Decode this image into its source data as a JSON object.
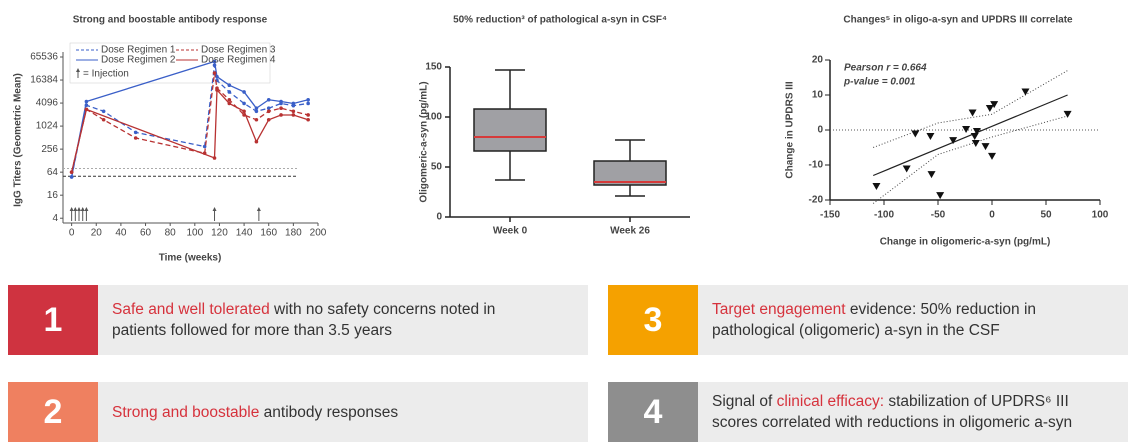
{
  "chart_data": [
    {
      "type": "line",
      "title": "Strong and boostable antibody response",
      "ylabel": "IgG Titers (Geometric Mean)",
      "xlabel": "Time (weeks)",
      "log_y": true,
      "xlim": [
        -7,
        200
      ],
      "ylim": [
        3,
        65536
      ],
      "xticks": [
        0,
        20,
        40,
        60,
        80,
        100,
        120,
        140,
        160,
        180,
        200
      ],
      "yticks": [
        4,
        16,
        64,
        256,
        1024,
        4096,
        16384,
        65536
      ],
      "injection_note": "= Injection",
      "injection_weeks": [
        0,
        3,
        6,
        9,
        12,
        116,
        152
      ],
      "reference_lines": [
        {
          "value": 80,
          "color": "#aaaaaa",
          "dash": "2,2"
        },
        {
          "value": 50,
          "color": "#333333",
          "dash": "3,2"
        }
      ],
      "series": [
        {
          "name": "Dose Regimen 1",
          "color": "#3a5fc8",
          "dashed": true,
          "x": [
            0,
            12,
            26,
            52,
            108,
            116,
            118,
            128,
            140,
            150,
            160,
            170,
            180,
            192
          ],
          "values": [
            48,
            3600,
            2500,
            700,
            300,
            40000,
            16000,
            8000,
            4000,
            2500,
            3000,
            4000,
            3500,
            4000
          ]
        },
        {
          "name": "Dose Regimen 2",
          "color": "#3a5fc8",
          "dashed": false,
          "x": [
            0,
            12,
            116,
            118,
            128,
            140,
            150,
            160,
            170,
            180,
            192
          ],
          "values": [
            48,
            4500,
            50000,
            20000,
            12000,
            8000,
            3000,
            5000,
            4500,
            4000,
            5000
          ]
        },
        {
          "name": "Dose Regimen 3",
          "color": "#b83232",
          "dashed": true,
          "x": [
            0,
            12,
            26,
            52,
            108,
            116,
            118,
            128,
            140,
            150,
            160,
            170,
            180,
            192
          ],
          "values": [
            64,
            2800,
            1500,
            500,
            200,
            25000,
            10000,
            5000,
            2000,
            1500,
            2500,
            3000,
            2500,
            2000
          ]
        },
        {
          "name": "Dose Regimen 4",
          "color": "#b83232",
          "dashed": false,
          "x": [
            0,
            12,
            116,
            118,
            128,
            140,
            150,
            160,
            170,
            180,
            192
          ],
          "values": [
            64,
            2800,
            150,
            9000,
            4000,
            2500,
            400,
            1500,
            2000,
            2000,
            1500
          ]
        }
      ]
    },
    {
      "type": "box",
      "title": "50% reduction³ of pathological a-syn in CSF⁴",
      "ylabel": "Oligomeric-a-syn (pg/mL)",
      "categories": [
        "Week 0",
        "Week 26"
      ],
      "ylim": [
        0,
        150
      ],
      "yticks": [
        0,
        50,
        100,
        150
      ],
      "color": "#a0a0a4",
      "median_color": "#d63a3a",
      "boxes": [
        {
          "min": 37,
          "q1": 66,
          "median": 80,
          "q3": 108,
          "max": 147
        },
        {
          "min": 21,
          "q1": 32,
          "median": 35,
          "q3": 56,
          "max": 77
        }
      ]
    },
    {
      "type": "scatter",
      "title": "Changes⁵ in oligo-a-syn and UPDRS III correlate",
      "xlabel": "Change in oligomeric-a-syn (pg/mL)",
      "ylabel": "Change in UPDRS III",
      "annotations": [
        "Pearson r = 0.664",
        "p-value = 0.001"
      ],
      "xlim": [
        -150,
        100
      ],
      "ylim": [
        -20,
        20
      ],
      "xticks": [
        -150,
        -100,
        -50,
        0,
        50,
        100
      ],
      "yticks": [
        -20,
        -10,
        0,
        10,
        20
      ],
      "color": "#111111",
      "x": [
        -107,
        -79,
        -71,
        -57,
        -56,
        -48,
        -36,
        -24,
        -18,
        -16,
        -15,
        -14,
        -6,
        -2,
        2,
        0,
        31,
        70
      ],
      "values": [
        -16,
        -11,
        -1,
        -1.7,
        -12.6,
        -18.6,
        -2.9,
        0.3,
        5,
        -1.7,
        -3.7,
        -0.3,
        -4.6,
        6.3,
        7.4,
        -7.4,
        11,
        4.6
      ],
      "fit": {
        "x": [
          -110,
          70
        ],
        "values": [
          -13,
          10
        ]
      },
      "ci": {
        "x": [
          -110,
          -50,
          0,
          70
        ],
        "upper": [
          -5,
          2,
          4.5,
          17
        ],
        "lower": [
          -21,
          -7,
          -2,
          4
        ]
      }
    }
  ],
  "highlight_color": "#d6323c",
  "cards": [
    {
      "number": "1",
      "color": "#cf3340",
      "parts": [
        {
          "text": "Safe and well tolerated",
          "highlight": true
        },
        {
          "text": " with no safety concerns noted in patients followed for more than 3.5 years",
          "highlight": false
        }
      ]
    },
    {
      "number": "2",
      "color": "#ef8060",
      "parts": [
        {
          "text": "Strong and boostable",
          "highlight": true
        },
        {
          "text": " antibody responses",
          "highlight": false
        }
      ]
    },
    {
      "number": "3",
      "color": "#f5a100",
      "parts": [
        {
          "text": "Target engagement",
          "highlight": true
        },
        {
          "text": " evidence",
          "highlight": false
        },
        {
          "text": ": 50% reduction in pathological (oligomeric) a-syn in the CSF",
          "highlight": false
        }
      ]
    },
    {
      "number": "4",
      "color": "#8e8e8e",
      "parts": [
        {
          "text": "Signal of ",
          "highlight": false
        },
        {
          "text": "clinical efficacy:",
          "highlight": true
        },
        {
          "text": " stabilization of UPDRS⁶ III scores correlated with reductions in oligomeric a-syn",
          "highlight": false
        }
      ]
    }
  ]
}
